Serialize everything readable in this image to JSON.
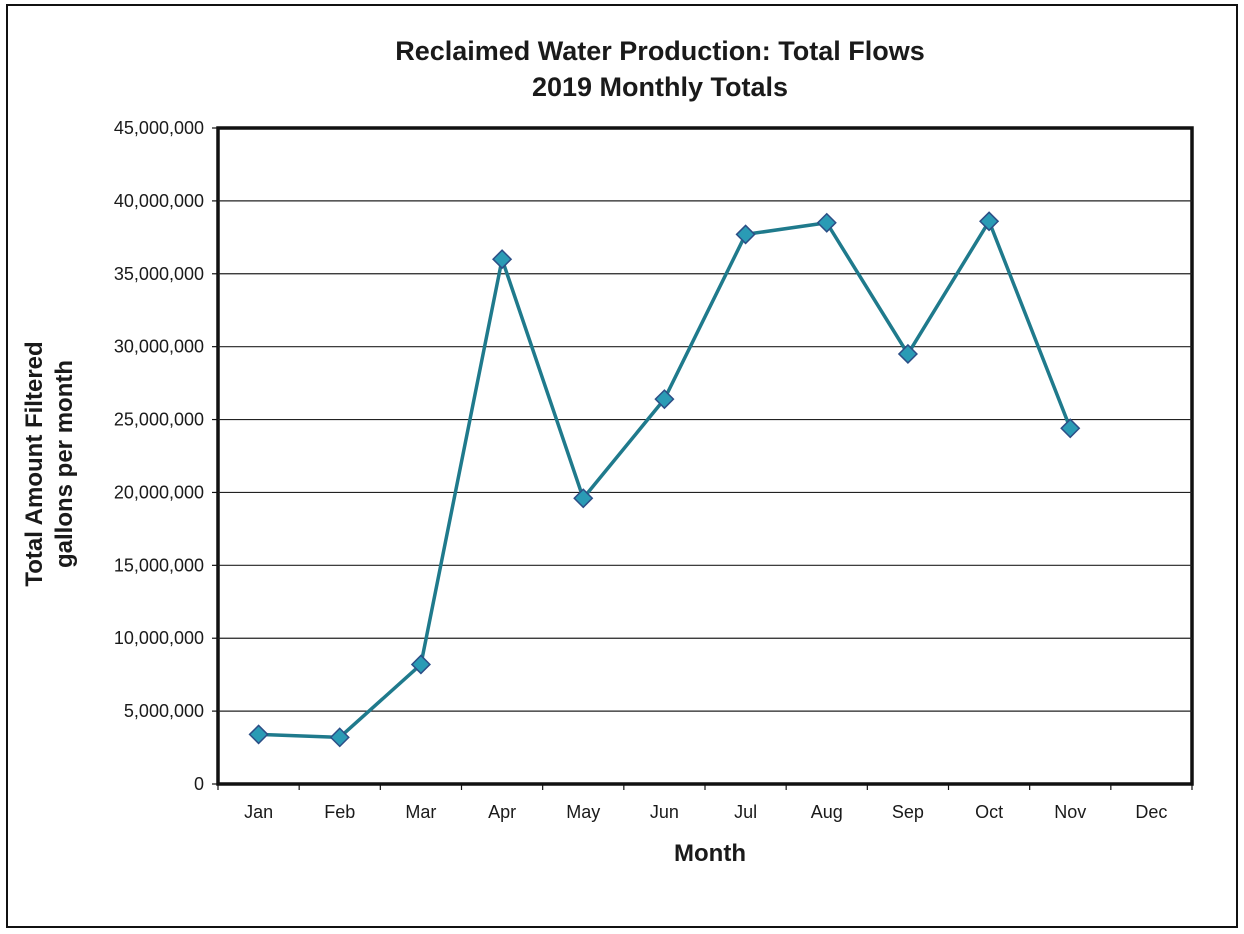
{
  "chart_data": {
    "type": "line",
    "title": "Reclaimed Water Production:  Total Flows",
    "subtitle": "2019 Monthly Totals",
    "xlabel": "Month",
    "ylabel": [
      "Total Amount Filtered",
      "gallons per month"
    ],
    "categories": [
      "Jan",
      "Feb",
      "Mar",
      "Apr",
      "May",
      "Jun",
      "Jul",
      "Aug",
      "Sep",
      "Oct",
      "Nov",
      "Dec"
    ],
    "ylim": [
      0,
      45000000
    ],
    "yticks": [
      0,
      5000000,
      10000000,
      15000000,
      20000000,
      25000000,
      30000000,
      35000000,
      40000000,
      45000000
    ],
    "ytick_labels": [
      "0",
      "5,000,000",
      "10,000,000",
      "15,000,000",
      "20,000,000",
      "25,000,000",
      "30,000,000",
      "35,000,000",
      "40,000,000",
      "45,000,000"
    ],
    "grid": true,
    "legend": "none",
    "series": [
      {
        "values": [
          3400000,
          3200000,
          8200000,
          36000000,
          19600000,
          26400000,
          37700000,
          38500000,
          29500000,
          38600000,
          24400000,
          null
        ],
        "color": "#1f7a8c",
        "marker_color": "#2a9bb5",
        "marker": "diamond"
      }
    ]
  }
}
